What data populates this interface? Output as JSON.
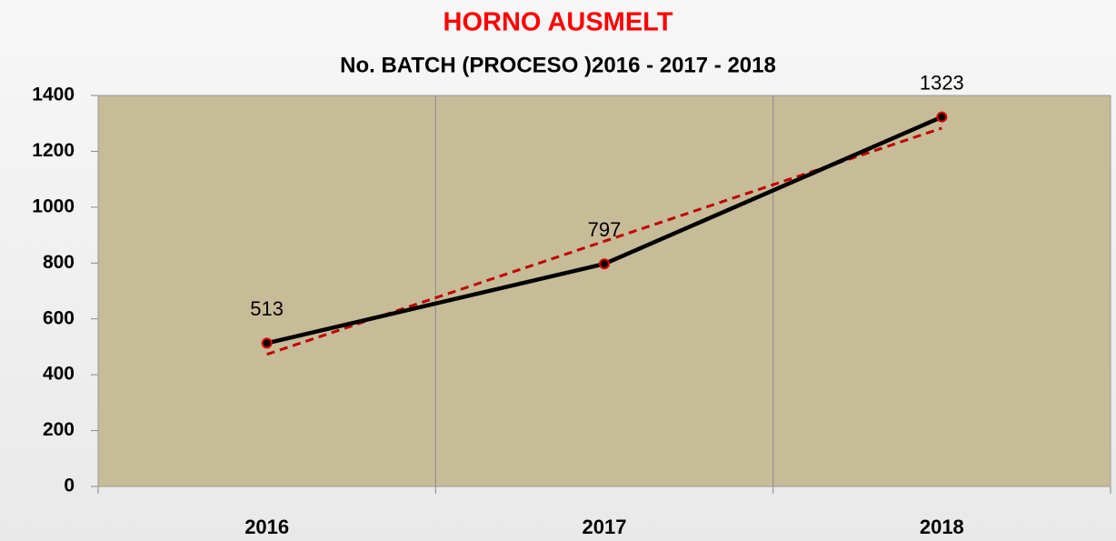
{
  "chart_data": {
    "type": "line",
    "title": "HORNO AUSMELT",
    "subtitle": "No. BATCH (PROCESO )2016 - 2017 - 2018",
    "categories": [
      "2016",
      "2017",
      "2018"
    ],
    "values": [
      513,
      797,
      1323
    ],
    "color": "#000000",
    "marker_color": "#e00000",
    "trendline": {
      "values": [
        473,
        878,
        1283
      ],
      "color": "#c00000",
      "dashed": true
    },
    "ylim": [
      0,
      1400
    ],
    "yticks": [
      0,
      200,
      400,
      600,
      800,
      1000,
      1200,
      1400
    ],
    "plot_background": "#c7bc98",
    "data_labels": true
  }
}
